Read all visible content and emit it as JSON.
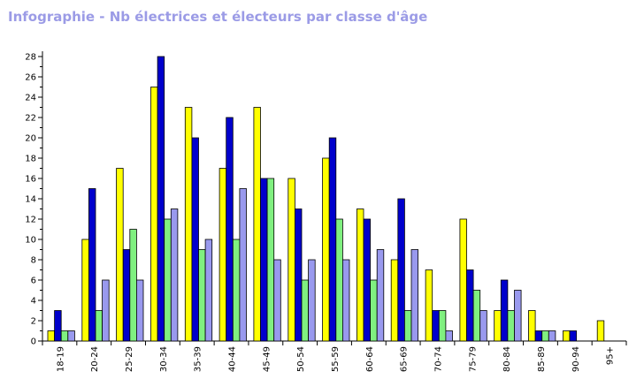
{
  "page": {
    "title": "Infographie - Nb électrices et électeurs par classe d'âge"
  },
  "chart_data": {
    "type": "bar",
    "title": "Infographie - Nb électrices et électeurs par classe d'âge",
    "xlabel": "",
    "ylabel": "",
    "ylim": [
      0,
      28
    ],
    "y_ticks": [
      0,
      2,
      4,
      6,
      8,
      10,
      12,
      14,
      16,
      18,
      20,
      22,
      24,
      26,
      28
    ],
    "grid": false,
    "legend": "none",
    "categories": [
      "18-19",
      "20-24",
      "25-29",
      "30-34",
      "35-39",
      "40-44",
      "45-49",
      "50-54",
      "55-59",
      "60-64",
      "65-69",
      "70-74",
      "75-79",
      "80-84",
      "85-89",
      "90-94",
      "95+"
    ],
    "series": [
      {
        "color": "#ffff00",
        "values": [
          1,
          10,
          17,
          25,
          23,
          17,
          23,
          16,
          18,
          13,
          8,
          7,
          12,
          3,
          3,
          1,
          2
        ]
      },
      {
        "color": "#0000cc",
        "values": [
          3,
          15,
          9,
          28,
          20,
          22,
          16,
          13,
          20,
          12,
          14,
          3,
          7,
          6,
          1,
          1,
          0
        ]
      },
      {
        "color": "#80f080",
        "values": [
          1,
          3,
          11,
          12,
          9,
          10,
          16,
          6,
          12,
          6,
          3,
          3,
          5,
          3,
          1,
          0,
          0
        ]
      },
      {
        "color": "#9999ee",
        "values": [
          1,
          6,
          6,
          13,
          10,
          15,
          8,
          8,
          8,
          9,
          9,
          1,
          3,
          5,
          1,
          0,
          0
        ]
      }
    ]
  }
}
